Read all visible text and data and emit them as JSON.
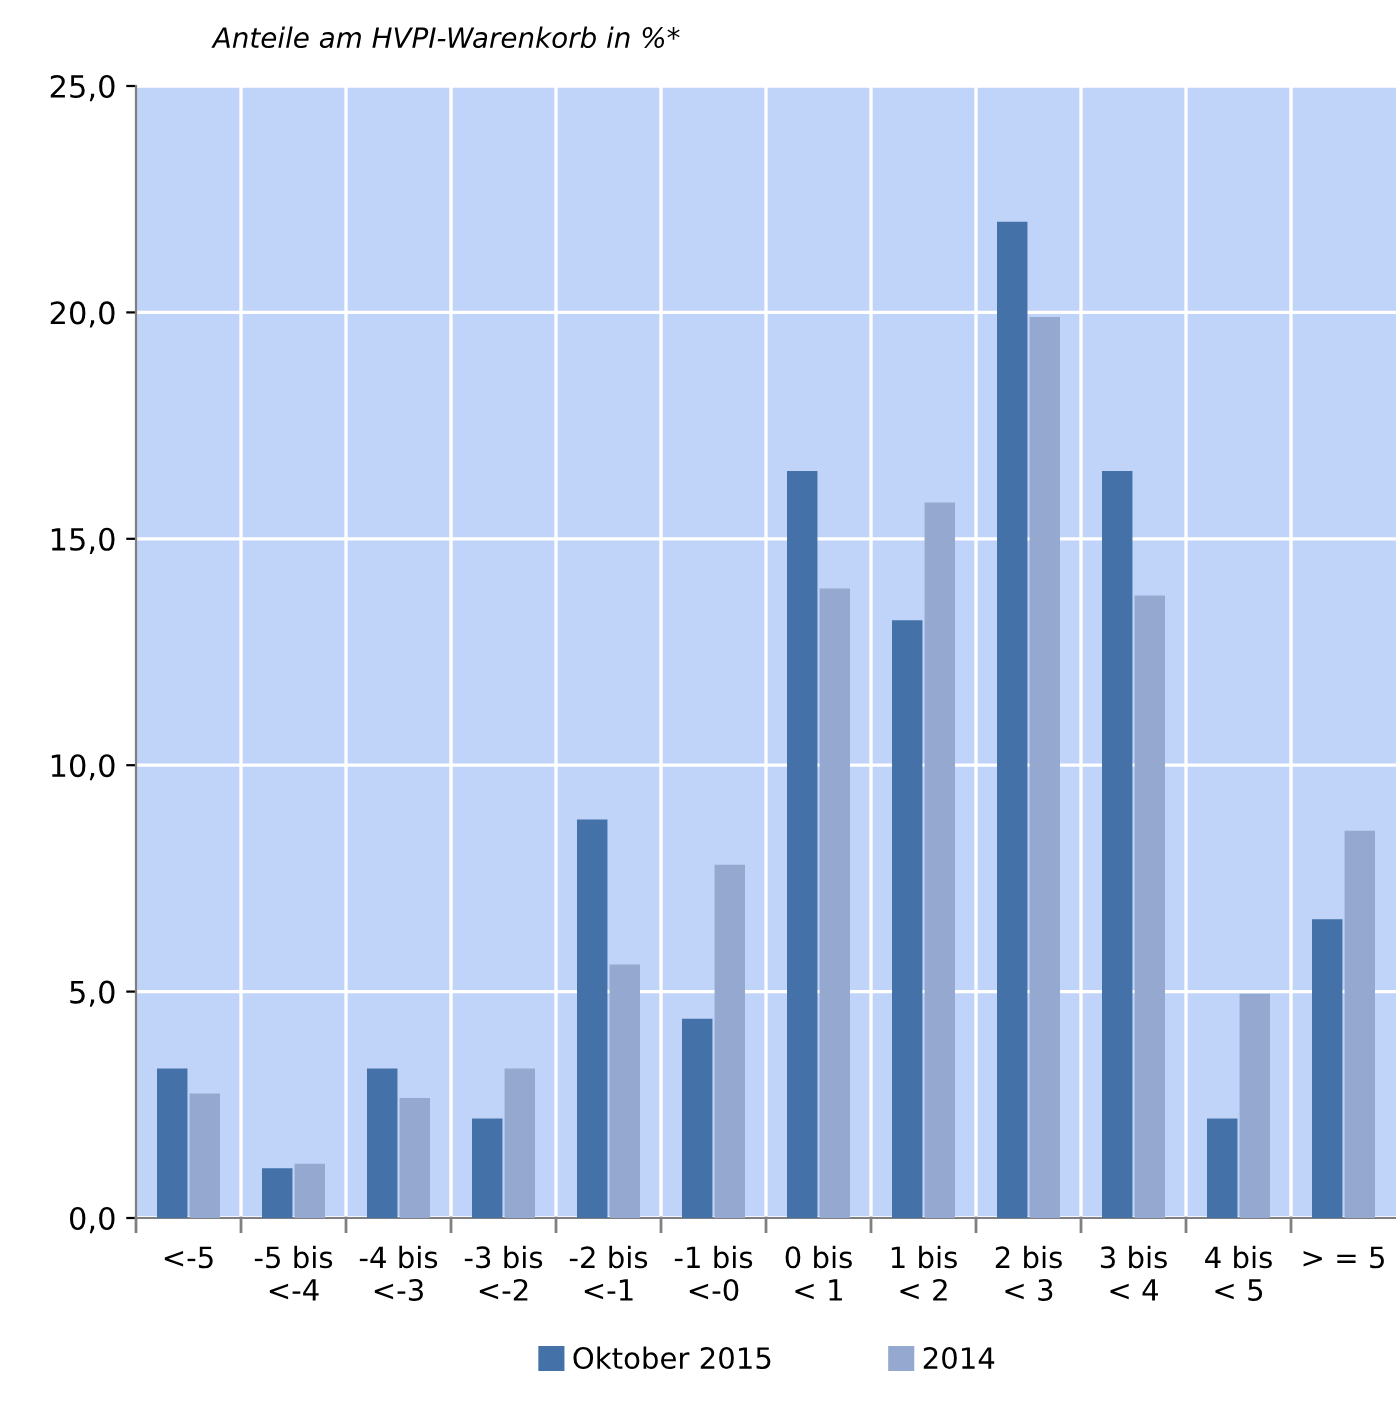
{
  "chart_data": {
    "type": "bar",
    "title": "Anteile am HVPI-Warenkorb in %*",
    "categories": [
      "<-5",
      "-5 bis\n<-4",
      "-4 bis\n<-3",
      "-3 bis\n<-2",
      "-2 bis\n<-1",
      "-1 bis\n<-0",
      "0 bis\n< 1",
      "1 bis\n< 2",
      "2 bis\n< 3",
      "3 bis\n< 4",
      "4 bis\n< 5",
      "> = 5"
    ],
    "series": [
      {
        "name": "Oktober 2015",
        "color": "#4472a8",
        "values": [
          3.3,
          1.1,
          3.3,
          2.2,
          8.8,
          4.4,
          16.5,
          13.2,
          22.0,
          16.5,
          2.2,
          6.6
        ]
      },
      {
        "name": "2014",
        "color": "#95a9d0",
        "values": [
          2.75,
          1.2,
          2.65,
          3.3,
          5.6,
          7.8,
          13.9,
          15.8,
          19.9,
          13.75,
          4.95,
          8.55
        ]
      }
    ],
    "ylim": [
      0,
      25
    ],
    "yticks": [
      {
        "value": 0,
        "label": "0,0"
      },
      {
        "value": 5,
        "label": "5,0"
      },
      {
        "value": 10,
        "label": "10,0"
      },
      {
        "value": 15,
        "label": "15,0"
      },
      {
        "value": 20,
        "label": "20,0"
      },
      {
        "value": 25,
        "label": "25,0"
      }
    ],
    "grid": true,
    "legend": "bottom"
  }
}
